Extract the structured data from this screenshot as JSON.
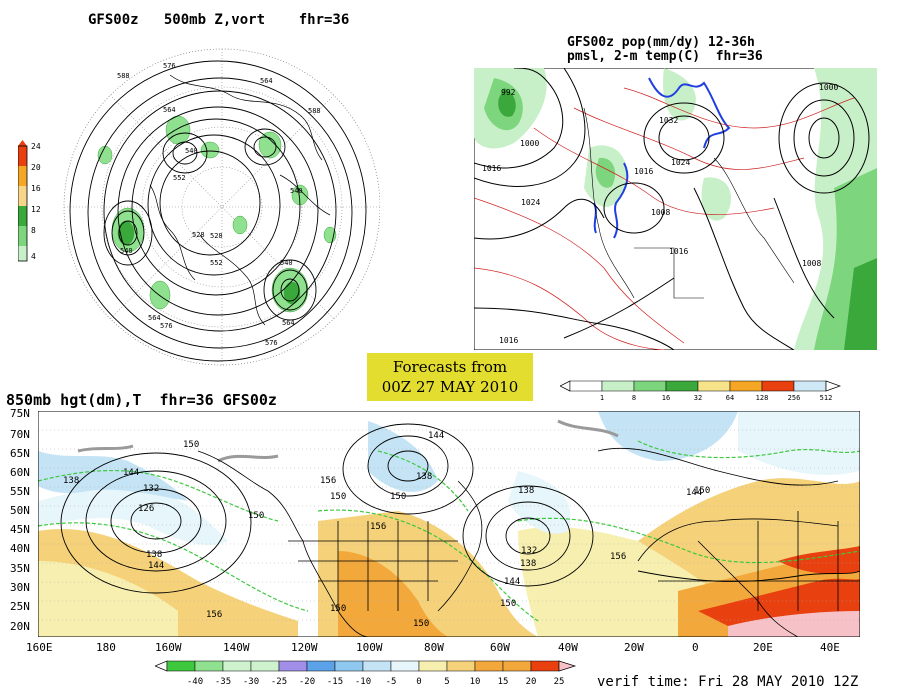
{
  "panels": {
    "top_left_title": "GFS00z   500mb Z,vort    fhr=36",
    "top_right_title_line1": "GFS00z pop(mm/dy) 12-36h",
    "top_right_title_line2": "pmsl, 2-m temp(C)  fhr=36",
    "bottom_title": "850mb hgt(dm),T  fhr=36 GFS00z"
  },
  "banner": {
    "line1": "Forecasts from",
    "line2": "00Z 27 MAY 2010"
  },
  "verif_time": "verif time: Fri 28 MAY 2010 12Z",
  "vort_colorbar": {
    "ticks": [
      "24",
      "20",
      "16",
      "12",
      "8",
      "4"
    ],
    "colors": [
      "#e8400f",
      "#f5a624",
      "#f7d68a",
      "#3aa83a",
      "#7dd57d",
      "#c8f0c8"
    ]
  },
  "pop_colorbar": {
    "ticks": [
      "1",
      "8",
      "16",
      "32",
      "64",
      "128",
      "256",
      "512"
    ],
    "colors": [
      "#ffffff",
      "#c8f0c8",
      "#7dd57d",
      "#3aa83a",
      "#f7e48a",
      "#f5a624",
      "#e8400f",
      "#cfe8f5",
      "#ffffff"
    ]
  },
  "temp_colorbar": {
    "ticks": [
      "-40",
      "-35",
      "-30",
      "-25",
      "-20",
      "-15",
      "-10",
      "-5",
      "0",
      "5",
      "10",
      "15",
      "20",
      "25"
    ],
    "colors": [
      "#ffffff",
      "#3ec83e",
      "#8fe08f",
      "#cdf2cd",
      "#a08ee8",
      "#5ba2e8",
      "#8fc8ee",
      "#c4e4f5",
      "#e6f6fb",
      "#ffffff",
      "#f7efb0",
      "#f5d27a",
      "#f2a83a",
      "#e8400f",
      "#f6c2c8"
    ]
  },
  "bottom_axes": {
    "lat_labels": [
      "75N",
      "70N",
      "65N",
      "60N",
      "55N",
      "50N",
      "45N",
      "40N",
      "35N",
      "30N",
      "25N",
      "20N"
    ],
    "lon_labels": [
      "160E",
      "180",
      "160W",
      "140W",
      "120W",
      "100W",
      "80W",
      "60W",
      "40W",
      "20W",
      "0",
      "20E",
      "40E"
    ]
  },
  "polar_labels": [
    "588",
    "576",
    "564",
    "552",
    "540",
    "528",
    "564",
    "540",
    "576",
    "588",
    "552",
    "540",
    "564",
    "576",
    "528",
    "540",
    "564"
  ],
  "pressure_labels": [
    "992",
    "1000",
    "1016",
    "1024",
    "1032",
    "1024",
    "1016",
    "1008",
    "1016",
    "1008",
    "1016",
    "1000"
  ],
  "height_labels": [
    "150",
    "144",
    "138",
    "132",
    "126",
    "138",
    "144",
    "150",
    "156",
    "150",
    "144",
    "138",
    "150",
    "156",
    "132",
    "138",
    "144",
    "150",
    "156",
    "150",
    "138",
    "144",
    "150",
    "150",
    "156"
  ]
}
